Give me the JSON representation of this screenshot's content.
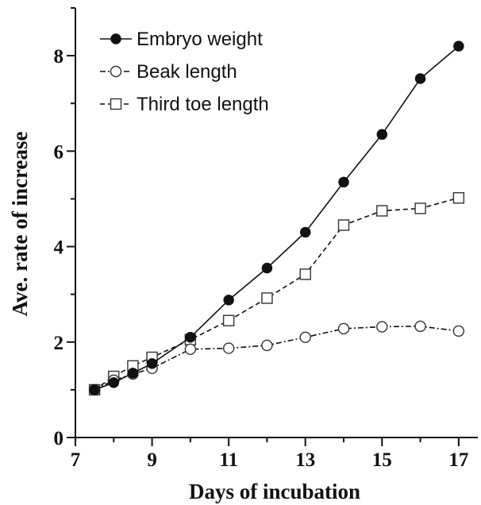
{
  "chart_data": {
    "type": "line",
    "xlabel": "Days of incubation",
    "ylabel": "Ave. rate of increase",
    "xlim": [
      7,
      17.5
    ],
    "ylim": [
      0,
      9
    ],
    "xticks": [
      7,
      9,
      11,
      13,
      15,
      17
    ],
    "yticks": [
      0,
      2,
      4,
      6,
      8
    ],
    "grid": false,
    "legend_position": "top-left",
    "series": [
      {
        "name": "Embryo weight",
        "marker": "filled-circle",
        "line_style": "solid",
        "x": [
          7.5,
          8,
          8.5,
          9,
          10,
          11,
          12,
          13,
          14,
          15,
          16,
          17
        ],
        "y": [
          1.0,
          1.15,
          1.35,
          1.55,
          2.1,
          2.88,
          3.55,
          4.3,
          5.35,
          6.35,
          7.52,
          8.2
        ]
      },
      {
        "name": "Beak length",
        "marker": "open-circle",
        "line_style": "dash-dot",
        "x": [
          7.5,
          8,
          8.5,
          9,
          10,
          11,
          12,
          13,
          14,
          15,
          16,
          17
        ],
        "y": [
          1.0,
          1.2,
          1.33,
          1.45,
          1.85,
          1.87,
          1.93,
          2.1,
          2.28,
          2.32,
          2.33,
          2.23
        ]
      },
      {
        "name": "Third toe length",
        "marker": "open-square",
        "line_style": "dashed",
        "x": [
          7.5,
          8,
          8.5,
          9,
          10,
          11,
          12,
          13,
          14,
          15,
          16,
          17
        ],
        "y": [
          1.0,
          1.28,
          1.5,
          1.68,
          2.05,
          2.45,
          2.92,
          3.42,
          4.45,
          4.75,
          4.8,
          5.02
        ]
      }
    ]
  }
}
